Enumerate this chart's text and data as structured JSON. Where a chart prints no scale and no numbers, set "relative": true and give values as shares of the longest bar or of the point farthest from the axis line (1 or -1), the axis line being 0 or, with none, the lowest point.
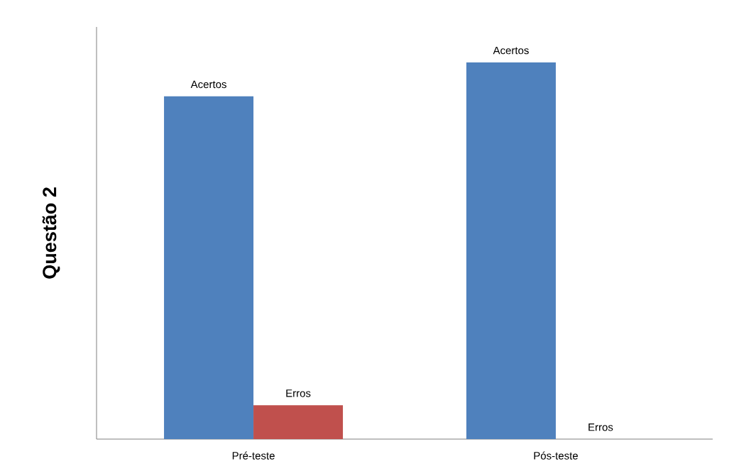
{
  "chart_data": {
    "type": "bar",
    "ylabel": "Questão 2",
    "relative": true,
    "categories": [
      "Pré-teste",
      "Pós-teste"
    ],
    "series": [
      {
        "name": "Acertos",
        "color": "#4f81bd",
        "values": [
          0.91,
          1
        ]
      },
      {
        "name": "Erros",
        "color": "#c0504d",
        "values": [
          0.09,
          0
        ]
      }
    ]
  }
}
